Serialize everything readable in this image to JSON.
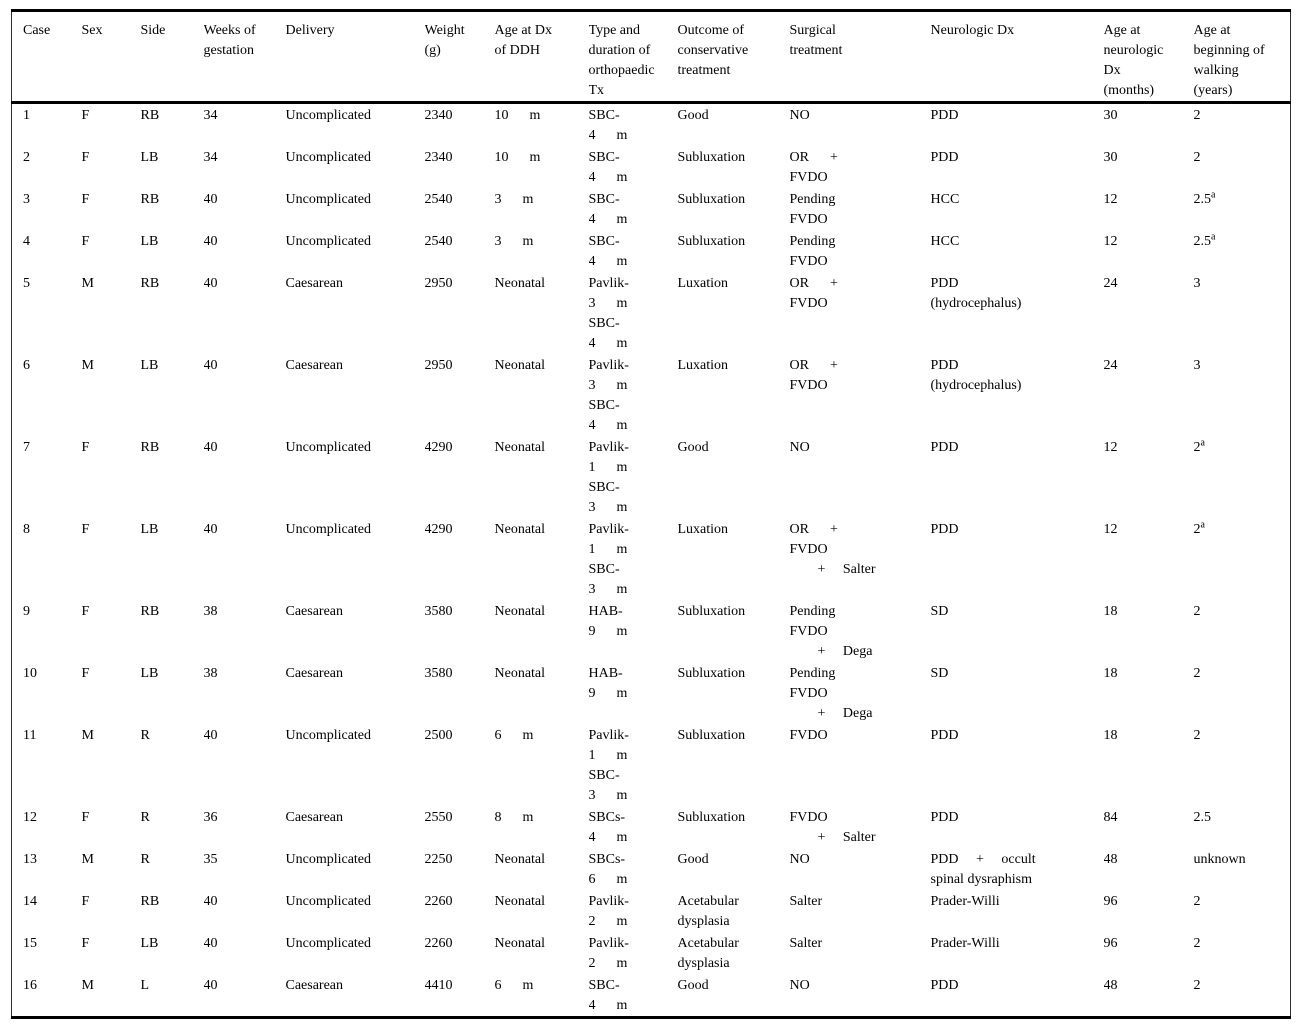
{
  "colors": {
    "background": "#ffffff",
    "text": "#000000",
    "rule": "#000000"
  },
  "table": {
    "columns": [
      "Case",
      "Sex",
      "Side",
      "Weeks of\ngestation",
      "Delivery",
      "Weight\n(g)",
      "Age at Dx\nof DDH",
      "Type and\nduration of\northopaedic\nTx",
      "Outcome of\nconservative\ntreatment",
      "Surgical\ntreatment",
      "Neurologic Dx",
      "Age at\nneurologic\nDx\n(months)",
      "Age at\nbeginning of\nwalking\n(years)"
    ],
    "rows": [
      [
        "1",
        "F",
        "RB",
        "34",
        "Uncomplicated",
        "2340",
        "10      m",
        "SBC-\n4      m",
        "Good",
        "NO",
        "PDD",
        "30",
        "2"
      ],
      [
        "2",
        "F",
        "LB",
        "34",
        "Uncomplicated",
        "2340",
        "10      m",
        "SBC-\n4      m",
        "Subluxation",
        "OR      +\nFVDO",
        "PDD",
        "30",
        "2"
      ],
      [
        "3",
        "F",
        "RB",
        "40",
        "Uncomplicated",
        "2540",
        "3      m",
        "SBC-\n4      m",
        "Subluxation",
        "Pending\nFVDO",
        "HCC",
        "12",
        "2.5^a"
      ],
      [
        "4",
        "F",
        "LB",
        "40",
        "Uncomplicated",
        "2540",
        "3      m",
        "SBC-\n4      m",
        "Subluxation",
        "Pending\nFVDO",
        "HCC",
        "12",
        "2.5^a"
      ],
      [
        "5",
        "M",
        "RB",
        "40",
        "Caesarean",
        "2950",
        "Neonatal",
        "Pavlik-\n3      m\nSBC-\n4      m",
        "Luxation",
        "OR      +\nFVDO",
        "PDD\n(hydrocephalus)",
        "24",
        "3"
      ],
      [
        "6",
        "M",
        "LB",
        "40",
        "Caesarean",
        "2950",
        "Neonatal",
        "Pavlik-\n3      m\nSBC-\n4      m",
        "Luxation",
        "OR      +\nFVDO",
        "PDD\n(hydrocephalus)",
        "24",
        "3"
      ],
      [
        "7",
        "F",
        "RB",
        "40",
        "Uncomplicated",
        "4290",
        "Neonatal",
        "Pavlik-\n1      m\nSBC-\n3      m",
        "Good",
        "NO",
        "PDD",
        "12",
        "2^a"
      ],
      [
        "8",
        "F",
        "LB",
        "40",
        "Uncomplicated",
        "4290",
        "Neonatal",
        "Pavlik-\n1      m\nSBC-\n3      m",
        "Luxation",
        "OR      +\nFVDO\n        +     Salter",
        "PDD",
        "12",
        "2^a"
      ],
      [
        "9",
        "F",
        "RB",
        "38",
        "Caesarean",
        "3580",
        "Neonatal",
        "HAB-\n9      m",
        "Subluxation",
        "Pending\nFVDO\n        +     Dega",
        "SD",
        "18",
        "2"
      ],
      [
        "10",
        "F",
        "LB",
        "38",
        "Caesarean",
        "3580",
        "Neonatal",
        "HAB-\n9      m",
        "Subluxation",
        "Pending\nFVDO\n        +     Dega",
        "SD",
        "18",
        "2"
      ],
      [
        "11",
        "M",
        "R",
        "40",
        "Uncomplicated",
        "2500",
        "6      m",
        "Pavlik-\n1      m\nSBC-\n3      m",
        "Subluxation",
        "FVDO",
        "PDD",
        "18",
        "2"
      ],
      [
        "12",
        "F",
        "R",
        "36",
        "Caesarean",
        "2550",
        "8      m",
        "SBCs-\n4      m",
        "Subluxation",
        "FVDO\n        +     Salter",
        "PDD",
        "84",
        "2.5"
      ],
      [
        "13",
        "M",
        "R",
        "35",
        "Uncomplicated",
        "2250",
        "Neonatal",
        "SBCs-\n6      m",
        "Good",
        "NO",
        "PDD     +     occult\nspinal dysraphism",
        "48",
        "unknown"
      ],
      [
        "14",
        "F",
        "RB",
        "40",
        "Uncomplicated",
        "2260",
        "Neonatal",
        "Pavlik-\n2      m",
        "Acetabular\ndysplasia",
        "Salter",
        "Prader-Willi",
        "96",
        "2"
      ],
      [
        "15",
        "F",
        "LB",
        "40",
        "Uncomplicated",
        "2260",
        "Neonatal",
        "Pavlik-\n2      m",
        "Acetabular\ndysplasia",
        "Salter",
        "Prader-Willi",
        "96",
        "2"
      ],
      [
        "16",
        "M",
        "L",
        "40",
        "Caesarean",
        "4410",
        "6      m",
        "SBC-\n4      m",
        "Good",
        "NO",
        "PDD",
        "48",
        "2"
      ]
    ]
  }
}
